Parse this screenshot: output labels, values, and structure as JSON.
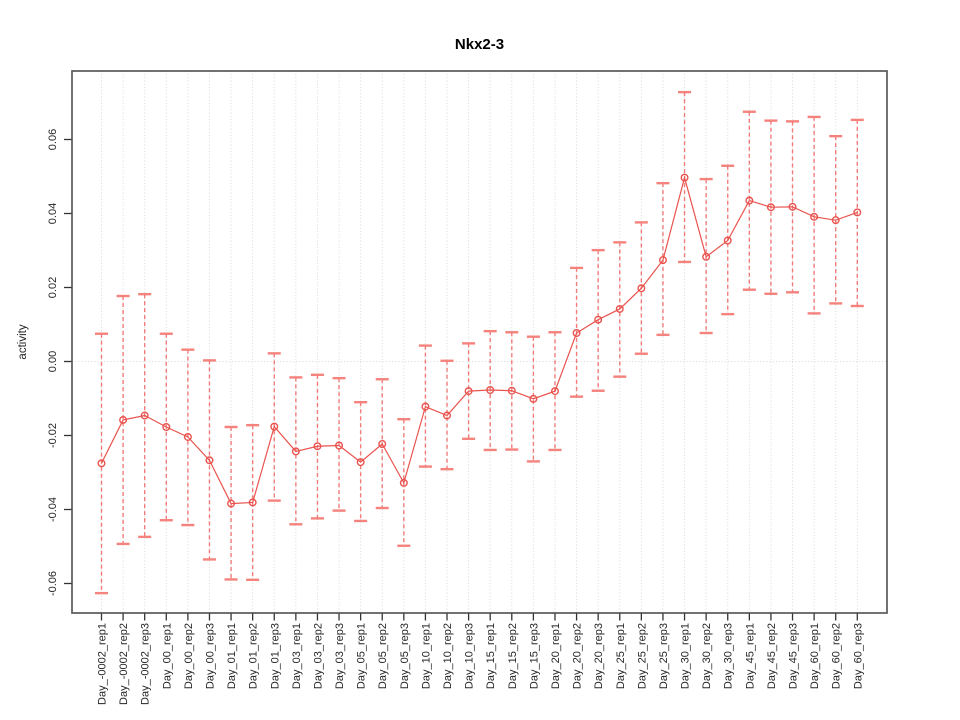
{
  "window": {
    "background": "#ffffff"
  },
  "chart_data": {
    "type": "line",
    "title": "Nkx2-3",
    "xlabel": "",
    "ylabel": "activity",
    "point_style": "open-circle",
    "error_bars": true,
    "grid": {
      "vertical_dotted_per_category": true,
      "horizontal_dotted_at_zero": true
    },
    "legend": "none",
    "ylim": [
      -0.068,
      0.0785
    ],
    "yticks": [
      -0.06,
      -0.04,
      -0.02,
      0.0,
      0.02,
      0.04,
      0.06
    ],
    "xtick_rotation": 90,
    "categories": [
      "Day_-0002_rep1",
      "Day_-0002_rep2",
      "Day_-0002_rep3",
      "Day_00_rep1",
      "Day_00_rep2",
      "Day_00_rep3",
      "Day_01_rep1",
      "Day_01_rep2",
      "Day_01_rep3",
      "Day_03_rep1",
      "Day_03_rep2",
      "Day_03_rep3",
      "Day_05_rep1",
      "Day_05_rep2",
      "Day_05_rep3",
      "Day_10_rep1",
      "Day_10_rep2",
      "Day_10_rep3",
      "Day_15_rep1",
      "Day_15_rep2",
      "Day_15_rep3",
      "Day_20_rep1",
      "Day_20_rep2",
      "Day_20_rep3",
      "Day_25_rep1",
      "Day_25_rep2",
      "Day_25_rep3",
      "Day_30_rep1",
      "Day_30_rep2",
      "Day_30_rep3",
      "Day_45_rep1",
      "Day_45_rep2",
      "Day_45_rep3",
      "Day_60_rep1",
      "Day_60_rep2",
      "Day_60_rep3"
    ],
    "series": [
      {
        "name": "activity",
        "values": [
          -0.0275,
          -0.0158,
          -0.0146,
          -0.0177,
          -0.0204,
          -0.0267,
          -0.0384,
          -0.0381,
          -0.0176,
          -0.0243,
          -0.0229,
          -0.0227,
          -0.0272,
          -0.0223,
          -0.0328,
          -0.0122,
          -0.0146,
          -0.008,
          -0.0077,
          -0.0079,
          -0.0101,
          -0.008,
          0.0077,
          0.0113,
          0.0142,
          0.0198,
          0.0274,
          0.0497,
          0.0283,
          0.0327,
          0.0435,
          0.0417,
          0.0418,
          0.0391,
          0.0382,
          0.0403
        ],
        "upper": [
          0.0075,
          0.0177,
          0.0182,
          0.0075,
          0.0032,
          0.0003,
          -0.0177,
          -0.0172,
          0.0022,
          -0.0043,
          -0.0036,
          -0.0045,
          -0.011,
          -0.0048,
          -0.0156,
          0.0043,
          0.0002,
          0.0049,
          0.0082,
          0.0079,
          0.0067,
          0.0079,
          0.0253,
          0.0301,
          0.0322,
          0.0376,
          0.0482,
          0.0728,
          0.0493,
          0.0529,
          0.0675,
          0.0651,
          0.0649,
          0.0661,
          0.0609,
          0.0653
        ],
        "lower": [
          -0.0626,
          -0.0493,
          -0.0474,
          -0.0429,
          -0.0442,
          -0.0535,
          -0.0589,
          -0.059,
          -0.0376,
          -0.044,
          -0.0424,
          -0.0403,
          -0.0431,
          -0.0396,
          -0.0498,
          -0.0284,
          -0.0291,
          -0.0209,
          -0.0239,
          -0.0238,
          -0.027,
          -0.0239,
          -0.0095,
          -0.0079,
          -0.0041,
          0.0021,
          0.0072,
          0.0269,
          0.0077,
          0.0128,
          0.0194,
          0.0183,
          0.0187,
          0.013,
          0.0157,
          0.015
        ]
      }
    ],
    "colors": {
      "point": "#e9534e",
      "series_line": "#e9534e",
      "errorbar_line": "#ef5350",
      "errorbar_cap": "#f4827d",
      "grid": "#d9d9d9",
      "axis_box": "#595959",
      "tick": "#333333",
      "text": "#262626",
      "title_text": "#000000"
    }
  }
}
